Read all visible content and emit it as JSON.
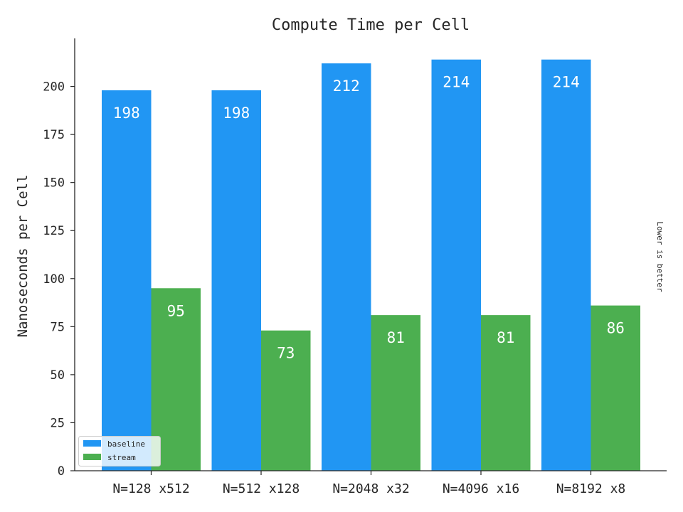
{
  "chart_data": {
    "type": "bar",
    "title": "Compute Time per Cell",
    "xlabel": "",
    "ylabel": "Nanoseconds per Cell",
    "side_note": "Lower is better",
    "categories": [
      "N=128 x512",
      "N=512 x128",
      "N=2048 x32",
      "N=4096 x16",
      "N=8192 x8"
    ],
    "series": [
      {
        "name": "baseline",
        "values": [
          198,
          198,
          212,
          214,
          214
        ],
        "color": "#2196f3"
      },
      {
        "name": "stream",
        "values": [
          95,
          73,
          81,
          81,
          86
        ],
        "color": "#4caf50"
      }
    ],
    "ylim": [
      0,
      225
    ],
    "yticks": [
      0,
      25,
      50,
      75,
      100,
      125,
      150,
      175,
      200
    ],
    "grid": false,
    "legend_position": "lower-left"
  }
}
